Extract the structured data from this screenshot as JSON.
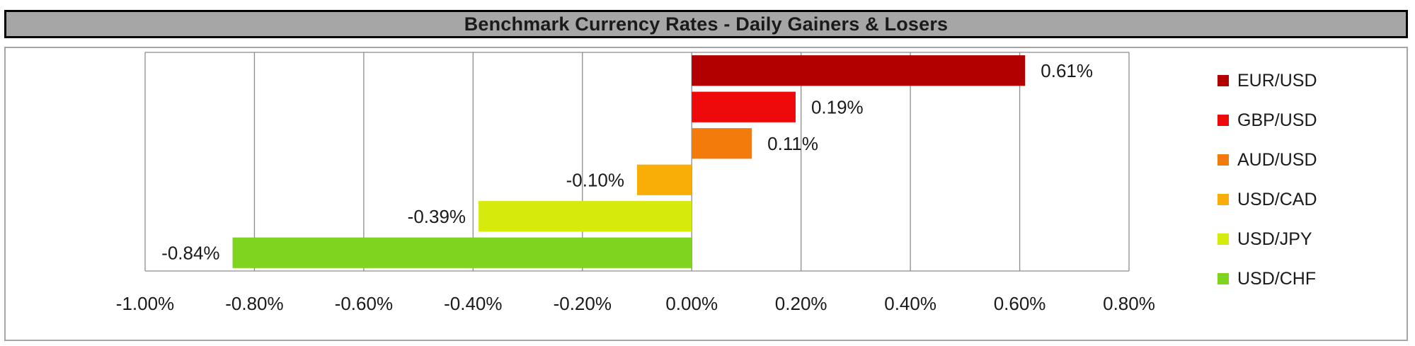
{
  "title": "Benchmark Currency Rates - Daily Gainers & Losers",
  "chart_data": {
    "type": "bar",
    "orientation": "horizontal",
    "title": "Benchmark Currency Rates - Daily Gainers & Losers",
    "xlabel": "",
    "ylabel": "",
    "xlim": [
      -1.0,
      0.8
    ],
    "x_tick_values": [
      -1.0,
      -0.8,
      -0.6,
      -0.4,
      -0.2,
      0.0,
      0.2,
      0.4,
      0.6,
      0.8
    ],
    "x_tick_labels": [
      "-1.00%",
      "-0.80%",
      "-0.60%",
      "-0.40%",
      "-0.20%",
      "0.00%",
      "0.20%",
      "0.40%",
      "0.60%",
      "0.80%"
    ],
    "grid": "vertical",
    "legend_position": "right",
    "series": [
      {
        "name": "EUR/USD",
        "value": 0.61,
        "label": "0.61%",
        "color": "#b20000"
      },
      {
        "name": "GBP/USD",
        "value": 0.19,
        "label": "0.19%",
        "color": "#ee0a0a"
      },
      {
        "name": "AUD/USD",
        "value": 0.11,
        "label": "0.11%",
        "color": "#f27b0c"
      },
      {
        "name": "USD/CAD",
        "value": -0.1,
        "label": "-0.10%",
        "color": "#f8ae07"
      },
      {
        "name": "USD/JPY",
        "value": -0.39,
        "label": "-0.39%",
        "color": "#d6eb0c"
      },
      {
        "name": "USD/CHF",
        "value": -0.84,
        "label": "-0.84%",
        "color": "#7fd420"
      }
    ]
  }
}
